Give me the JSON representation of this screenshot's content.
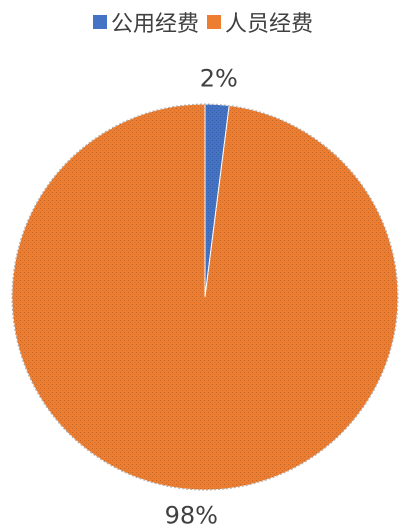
{
  "chart_data": {
    "type": "pie",
    "title": "",
    "categories": [
      "公用经费",
      "人员经费"
    ],
    "values": [
      2,
      98
    ],
    "labels": [
      "2%",
      "98%"
    ],
    "colors": [
      "#4472C4",
      "#ED7D31"
    ],
    "legend_position": "top"
  }
}
